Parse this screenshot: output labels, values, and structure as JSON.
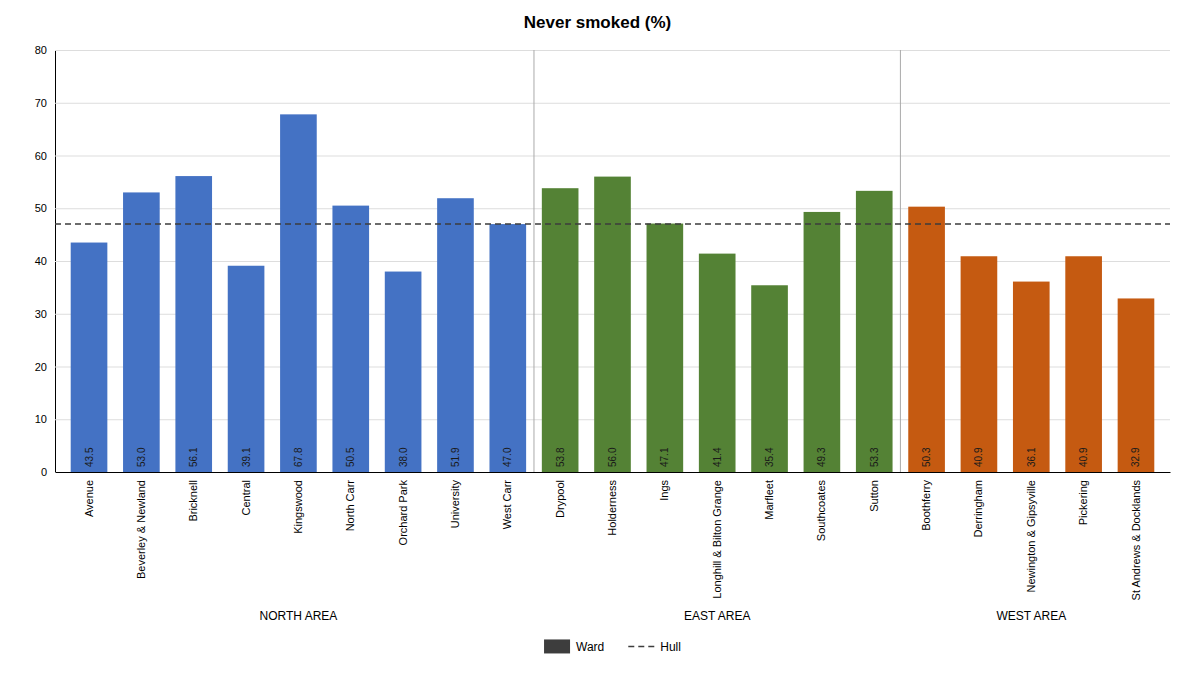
{
  "chart_data": {
    "type": "bar",
    "title": "Never smoked (%)",
    "categories": [
      "Avenue",
      "Beverley & Newland",
      "Bricknell",
      "Central",
      "Kingswood",
      "North Carr",
      "Orchard Park",
      "University",
      "West Carr",
      "Drypool",
      "Holderness",
      "Ings",
      "Longhill & Bilton Grange",
      "Marfleet",
      "Southcoates",
      "Sutton",
      "Boothferry",
      "Derringham",
      "Newington & Gipsyville",
      "Pickering",
      "St Andrews & Docklands"
    ],
    "series": [
      {
        "name": "Ward",
        "color": "#3D3D3D",
        "values": [
          43.5,
          53.0,
          56.1,
          39.1,
          67.8,
          50.5,
          38.0,
          51.9,
          47.0,
          53.8,
          56.0,
          47.1,
          41.4,
          35.4,
          49.3,
          53.3,
          50.3,
          40.9,
          36.1,
          40.9,
          32.9
        ],
        "value_labels": [
          "43.5",
          "53.0",
          "56.1",
          "39.1",
          "67.8",
          "50.5",
          "38.0",
          "51.9",
          "47.0",
          "53.8",
          "56.0",
          "47.1",
          "41.4",
          "35.4",
          "49.3",
          "53.3",
          "50.3",
          "40.9",
          "36.1",
          "40.9",
          "32.9"
        ],
        "colors": [
          "#4472C4",
          "#4472C4",
          "#4472C4",
          "#4472C4",
          "#4472C4",
          "#4472C4",
          "#4472C4",
          "#4472C4",
          "#4472C4",
          "#548235",
          "#548235",
          "#548235",
          "#548235",
          "#548235",
          "#548235",
          "#548235",
          "#C55A11",
          "#C55A11",
          "#C55A11",
          "#C55A11",
          "#C55A11"
        ]
      }
    ],
    "reference_lines": [
      {
        "name": "Hull",
        "value": 47.0,
        "color": "#3D3D3D",
        "line_style": "dashed"
      }
    ],
    "annotations": [
      {
        "text": "NORTH AREA",
        "from": "Avenue",
        "to": "West Carr"
      },
      {
        "text": "EAST AREA",
        "from": "Drypool",
        "to": "Sutton"
      },
      {
        "text": "WEST AREA",
        "from": "Boothferry",
        "to": "St Andrews & Docklands"
      }
    ],
    "ylim": [
      0,
      80
    ],
    "yticks": [
      0,
      10,
      20,
      30,
      40,
      50,
      60,
      70,
      80
    ],
    "grid": true,
    "data_labels": true,
    "legend": "bottom"
  }
}
